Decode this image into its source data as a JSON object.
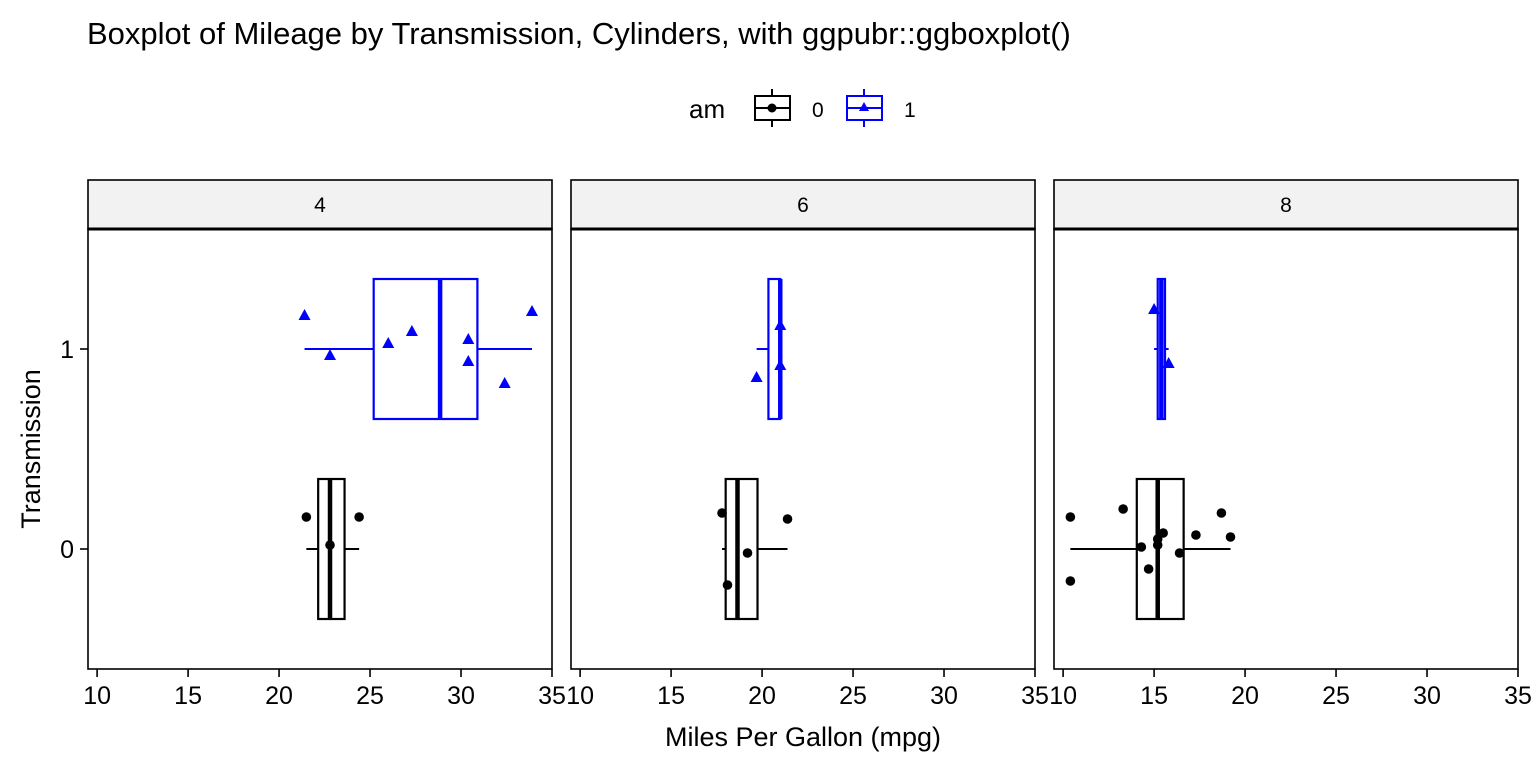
{
  "chart_data": {
    "type": "box",
    "title": "Boxplot of Mileage by Transmission, Cylinders, with ggpubr::ggboxplot()",
    "xlabel": "Miles Per Gallon (mpg)",
    "ylabel": "Transmission",
    "legend": {
      "title": "am",
      "position": "top",
      "entries": [
        "0",
        "1"
      ]
    },
    "xlim": [
      9.5,
      35
    ],
    "xticks": [
      10,
      15,
      20,
      25,
      30,
      35
    ],
    "ylim": [
      -0.6,
      1.6
    ],
    "yticks": [
      0,
      1
    ],
    "grid": false,
    "facets": [
      {
        "label": "4",
        "groups": [
          {
            "am": "0",
            "color": "#000000",
            "box": {
              "whisker_low": 21.5,
              "q1": 22.15,
              "median": 22.8,
              "q3": 23.6,
              "whisker_high": 24.4
            },
            "points": [
              {
                "x": 21.5,
                "y": 0.16
              },
              {
                "x": 22.8,
                "y": 0.02
              },
              {
                "x": 24.4,
                "y": 0.16
              }
            ]
          },
          {
            "am": "1",
            "color": "#0000ff",
            "box": {
              "whisker_low": 21.4,
              "q1": 25.2,
              "median": 28.85,
              "q3": 30.9,
              "whisker_high": 33.9
            },
            "points": [
              {
                "x": 21.4,
                "y": 1.17
              },
              {
                "x": 22.8,
                "y": 0.97
              },
              {
                "x": 26.0,
                "y": 1.03
              },
              {
                "x": 27.3,
                "y": 1.09
              },
              {
                "x": 30.4,
                "y": 1.05
              },
              {
                "x": 30.4,
                "y": 0.94
              },
              {
                "x": 32.4,
                "y": 0.83
              },
              {
                "x": 33.9,
                "y": 1.19
              }
            ]
          }
        ]
      },
      {
        "label": "6",
        "groups": [
          {
            "am": "0",
            "color": "#000000",
            "box": {
              "whisker_low": 17.8,
              "q1": 18.0,
              "median": 18.65,
              "q3": 19.75,
              "whisker_high": 21.4
            },
            "points": [
              {
                "x": 17.8,
                "y": 0.18
              },
              {
                "x": 18.1,
                "y": -0.18
              },
              {
                "x": 19.2,
                "y": -0.02
              },
              {
                "x": 21.4,
                "y": 0.15
              }
            ]
          },
          {
            "am": "1",
            "color": "#0000ff",
            "box": {
              "whisker_low": 19.7,
              "q1": 20.35,
              "median": 21.0,
              "q3": 21.0,
              "whisker_high": 21.0
            },
            "points": [
              {
                "x": 19.7,
                "y": 0.86
              },
              {
                "x": 21.0,
                "y": 1.12
              },
              {
                "x": 21.0,
                "y": 0.92
              }
            ]
          }
        ]
      },
      {
        "label": "8",
        "groups": [
          {
            "am": "0",
            "color": "#000000",
            "box": {
              "whisker_low": 10.4,
              "q1": 14.05,
              "median": 15.2,
              "q3": 16.625,
              "whisker_high": 19.2
            },
            "points": [
              {
                "x": 10.4,
                "y": 0.16
              },
              {
                "x": 10.4,
                "y": -0.16
              },
              {
                "x": 13.3,
                "y": 0.2
              },
              {
                "x": 14.3,
                "y": 0.01
              },
              {
                "x": 14.7,
                "y": -0.1
              },
              {
                "x": 15.2,
                "y": 0.02
              },
              {
                "x": 15.2,
                "y": 0.05
              },
              {
                "x": 15.5,
                "y": 0.08
              },
              {
                "x": 16.4,
                "y": -0.02
              },
              {
                "x": 17.3,
                "y": 0.07
              },
              {
                "x": 18.7,
                "y": 0.18
              },
              {
                "x": 19.2,
                "y": 0.06
              }
            ]
          },
          {
            "am": "1",
            "color": "#0000ff",
            "box": {
              "whisker_low": 15.0,
              "q1": 15.2,
              "median": 15.4,
              "q3": 15.6,
              "whisker_high": 15.8
            },
            "points": [
              {
                "x": 15.0,
                "y": 1.2
              },
              {
                "x": 15.8,
                "y": 0.93
              }
            ]
          }
        ]
      }
    ]
  }
}
